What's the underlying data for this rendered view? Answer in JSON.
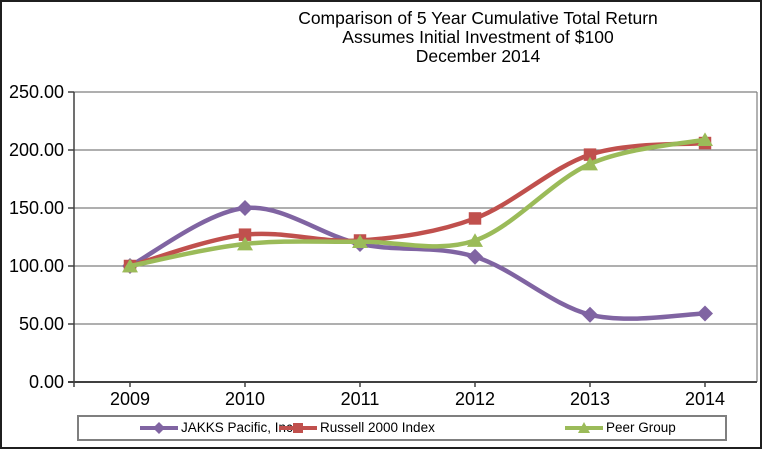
{
  "chart_data": {
    "type": "line",
    "smooth": true,
    "title": "Comparison of 5 Year Cumulative Total Return",
    "subtitle": "Assumes Initial Investment of $100",
    "date_label": "December 2014",
    "categories": [
      "2009",
      "2010",
      "2011",
      "2012",
      "2013",
      "2014"
    ],
    "series": [
      {
        "name": "JAKKS Pacific, Inc.",
        "marker": "diamond",
        "color": "#8064A2",
        "values": [
          100,
          150,
          119,
          108,
          58,
          59
        ]
      },
      {
        "name": "Russell 2000 Index",
        "marker": "square",
        "color": "#C0504D",
        "values": [
          100,
          127,
          122,
          141,
          196,
          206
        ]
      },
      {
        "name": "Peer Group",
        "marker": "triangle",
        "color": "#9BBB59",
        "values": [
          100,
          119,
          121,
          122,
          188,
          209
        ]
      }
    ],
    "ylim": [
      0,
      250
    ],
    "ytick_step": 50,
    "ytick_labels": [
      "0.00",
      "50.00",
      "100.00",
      "150.00",
      "200.00",
      "250.00"
    ],
    "grid": "horizontal",
    "gridline_color": "#7f7f7f",
    "axis_color": "#404040",
    "legend_position": "bottom"
  }
}
